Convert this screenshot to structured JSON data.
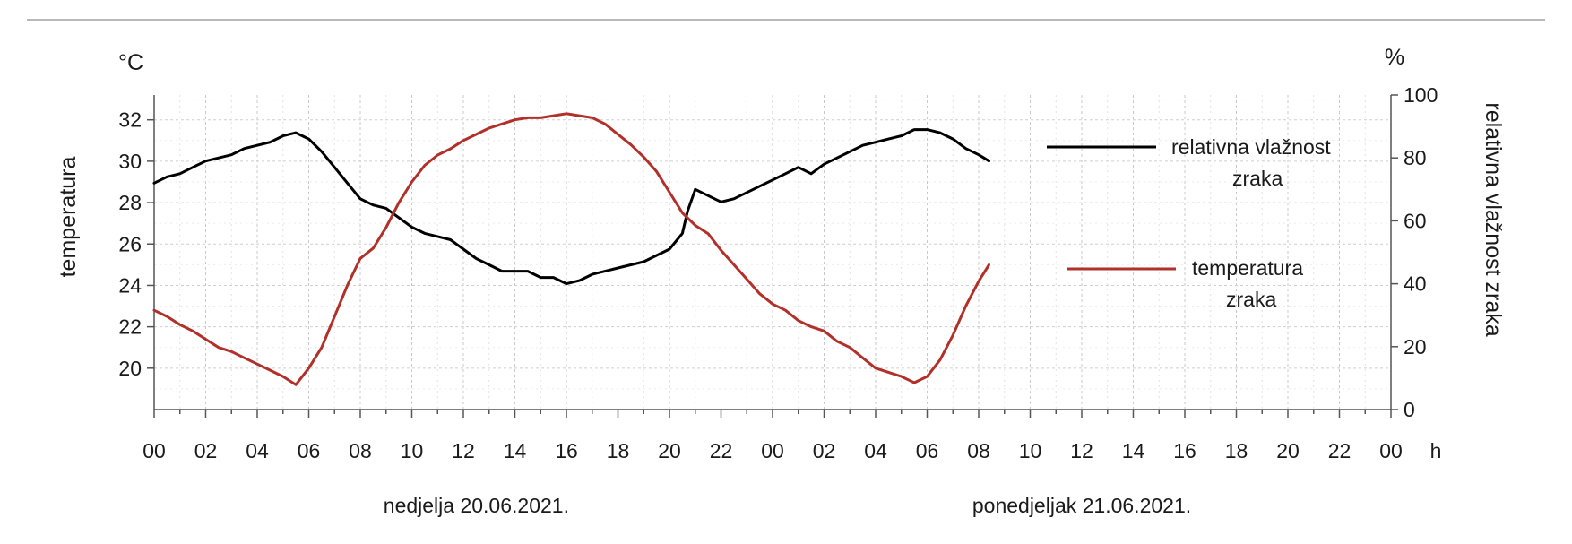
{
  "chart_data": {
    "type": "line",
    "y_left_unit": "°C",
    "y_left_label": "temperatura",
    "y_right_unit": "%",
    "y_right_label": "relativna vlažnost zraka",
    "x_unit": "h",
    "x_tick_labels": [
      "00",
      "02",
      "04",
      "06",
      "08",
      "10",
      "12",
      "14",
      "16",
      "18",
      "20",
      "22",
      "00",
      "02",
      "04",
      "06",
      "08",
      "10",
      "12",
      "14",
      "16",
      "18",
      "20",
      "22",
      "00"
    ],
    "day_labels": [
      {
        "text": "nedjelja 20.06.2021.",
        "center_hour": 12.5
      },
      {
        "text": "ponedjeljak 21.06.2021.",
        "center_hour": 36
      }
    ],
    "xlim_hours": [
      0,
      48
    ],
    "ylim_left": [
      18,
      33.2
    ],
    "ylim_right": [
      0,
      100
    ],
    "y_left_ticks": [
      20,
      22,
      24,
      26,
      28,
      30,
      32
    ],
    "y_right_ticks": [
      0,
      20,
      40,
      60,
      80,
      100
    ],
    "grid": true,
    "legend_placement": "right",
    "series": [
      {
        "name": "relativna vlažnost zraka",
        "axis": "right",
        "color": "#000000",
        "x": [
          0,
          0.5,
          1,
          1.5,
          2,
          2.5,
          3,
          3.5,
          4,
          4.5,
          5,
          5.5,
          6,
          6.5,
          7,
          7.5,
          8,
          8.5,
          9,
          9.5,
          10,
          10.5,
          11,
          11.5,
          12,
          12.5,
          13,
          13.5,
          14,
          14.5,
          15,
          15.5,
          16,
          16.5,
          17,
          17.5,
          18,
          18.5,
          19,
          19.5,
          20,
          20.5,
          20.7,
          21,
          21.5,
          22,
          22.5,
          23,
          23.5,
          24,
          24.5,
          25,
          25.5,
          26,
          26.5,
          27,
          27.5,
          28,
          28.5,
          29,
          29.5,
          30,
          30.5,
          31,
          31.5,
          32,
          32.2,
          32.4
        ],
        "y": [
          72,
          74,
          75,
          77,
          79,
          80,
          81,
          83,
          84,
          85,
          87,
          88,
          86,
          82,
          77,
          72,
          67,
          65,
          64,
          61,
          58,
          56,
          55,
          54,
          51,
          48,
          46,
          44,
          44,
          44,
          42,
          42,
          40,
          41,
          43,
          44,
          45,
          46,
          47,
          49,
          51,
          56,
          63,
          70,
          68,
          66,
          67,
          69,
          71,
          73,
          75,
          77,
          75,
          78,
          80,
          82,
          84,
          85,
          86,
          87,
          89,
          89,
          88,
          86,
          83,
          81,
          80,
          79
        ]
      },
      {
        "name": "temperatura zraka",
        "axis": "left",
        "color": "#b2302a",
        "x": [
          0,
          0.5,
          1,
          1.5,
          2,
          2.5,
          3,
          3.5,
          4,
          4.5,
          5,
          5.5,
          6,
          6.5,
          7,
          7.5,
          8,
          8.5,
          9,
          9.5,
          10,
          10.5,
          11,
          11.5,
          12,
          12.5,
          13,
          13.5,
          14,
          14.5,
          15,
          15.5,
          16,
          16.5,
          17,
          17.5,
          18,
          18.5,
          19,
          19.5,
          20,
          20.5,
          21,
          21.5,
          22,
          22.5,
          23,
          23.5,
          24,
          24.5,
          25,
          25.5,
          26,
          26.5,
          27,
          27.5,
          28,
          28.5,
          29,
          29.5,
          30,
          30.5,
          31,
          31.5,
          32,
          32.2,
          32.4
        ],
        "y": [
          22.8,
          22.5,
          22.1,
          21.8,
          21.4,
          21.0,
          20.8,
          20.5,
          20.2,
          19.9,
          19.6,
          19.2,
          20.0,
          21.0,
          22.5,
          24.0,
          25.3,
          25.8,
          26.8,
          28.0,
          29.0,
          29.8,
          30.3,
          30.6,
          31.0,
          31.3,
          31.6,
          31.8,
          32.0,
          32.1,
          32.1,
          32.2,
          32.3,
          32.2,
          32.1,
          31.8,
          31.3,
          30.8,
          30.2,
          29.5,
          28.5,
          27.5,
          26.9,
          26.5,
          25.7,
          25.0,
          24.3,
          23.6,
          23.1,
          22.8,
          22.3,
          22.0,
          21.8,
          21.3,
          21.0,
          20.5,
          20.0,
          19.8,
          19.6,
          19.3,
          19.6,
          20.4,
          21.6,
          23.0,
          24.2,
          24.6,
          25.0
        ]
      }
    ]
  }
}
